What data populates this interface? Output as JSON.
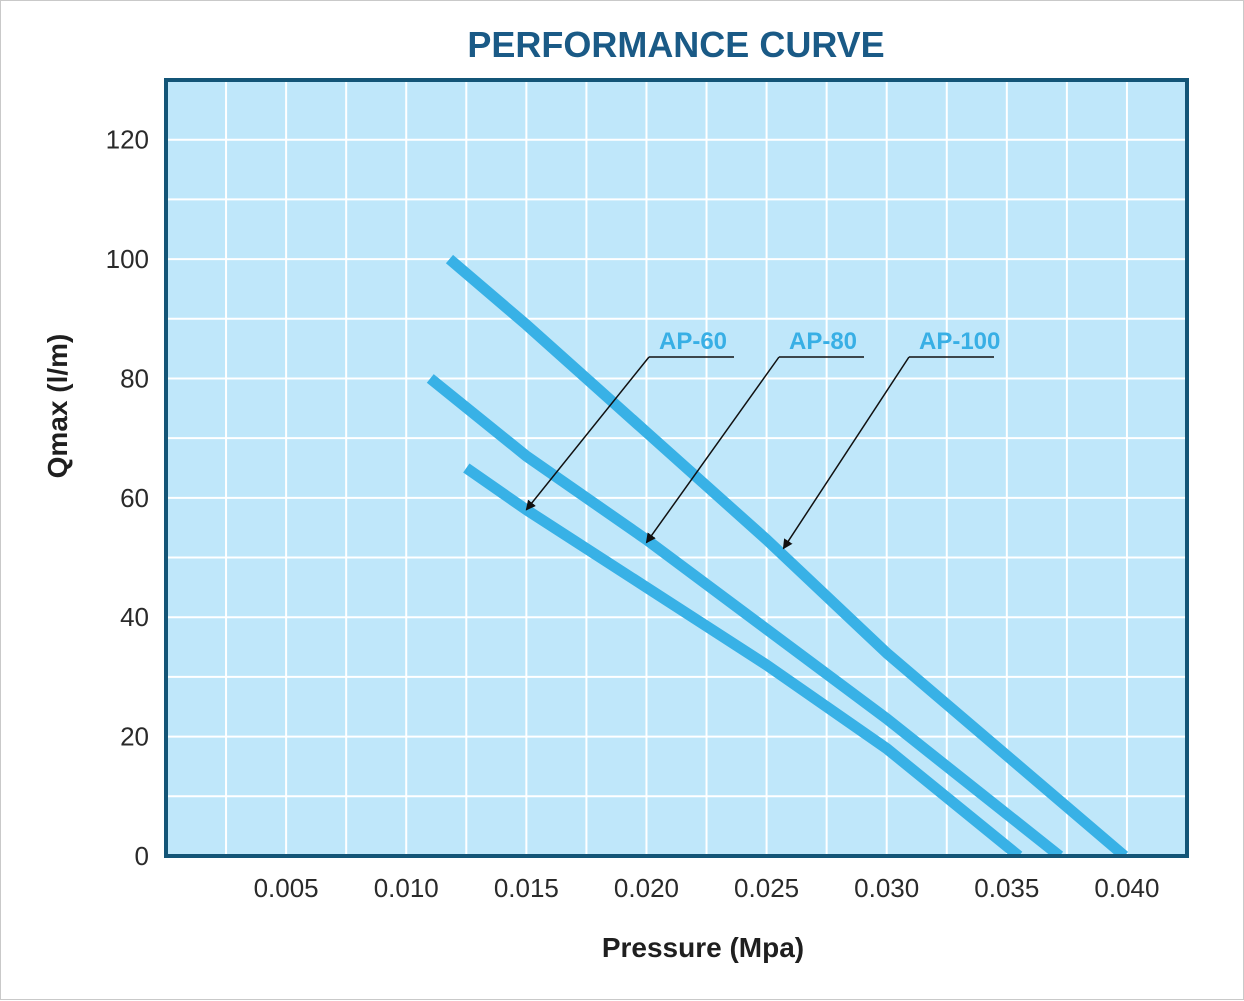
{
  "colors": {
    "plot_background": "#bfe7fa",
    "grid": "#ffffff",
    "frame": "#135577",
    "curve": "#38b1e6",
    "title": "#1a5a86",
    "arrow": "#111111"
  },
  "chart_data": {
    "type": "line",
    "title": "PERFORMANCE CURVE",
    "xlabel": "Pressure (Mpa)",
    "ylabel": "Qmax (l/m)",
    "xlim": [
      0.0,
      0.0425
    ],
    "ylim": [
      0,
      130
    ],
    "x_ticks": [
      0.005,
      0.01,
      0.015,
      0.02,
      0.025,
      0.03,
      0.035,
      0.04
    ],
    "x_tick_labels": [
      "0.005",
      "0.010",
      "0.015",
      "0.020",
      "0.025",
      "0.030",
      "0.035",
      "0.040"
    ],
    "y_ticks": [
      0,
      20,
      40,
      60,
      80,
      100,
      120
    ],
    "y_tick_labels": [
      "0",
      "20",
      "40",
      "60",
      "80",
      "100",
      "120"
    ],
    "grid": true,
    "series": [
      {
        "name": "AP-60",
        "points": [
          [
            0.0125,
            65
          ],
          [
            0.015,
            58
          ],
          [
            0.02,
            45
          ],
          [
            0.025,
            32
          ],
          [
            0.03,
            18
          ],
          [
            0.0355,
            0
          ]
        ],
        "label_arrow_target": [
          0.015,
          58
        ]
      },
      {
        "name": "AP-80",
        "points": [
          [
            0.011,
            80
          ],
          [
            0.015,
            67
          ],
          [
            0.02,
            53
          ],
          [
            0.025,
            38
          ],
          [
            0.03,
            23
          ],
          [
            0.0372,
            0
          ]
        ],
        "label_arrow_target": [
          0.02,
          52.5
        ]
      },
      {
        "name": "AP-100",
        "points": [
          [
            0.0118,
            100
          ],
          [
            0.015,
            89
          ],
          [
            0.02,
            71
          ],
          [
            0.025,
            53
          ],
          [
            0.03,
            34
          ],
          [
            0.0399,
            0
          ]
        ],
        "label_arrow_target": [
          0.0257,
          51.5
        ]
      }
    ]
  }
}
